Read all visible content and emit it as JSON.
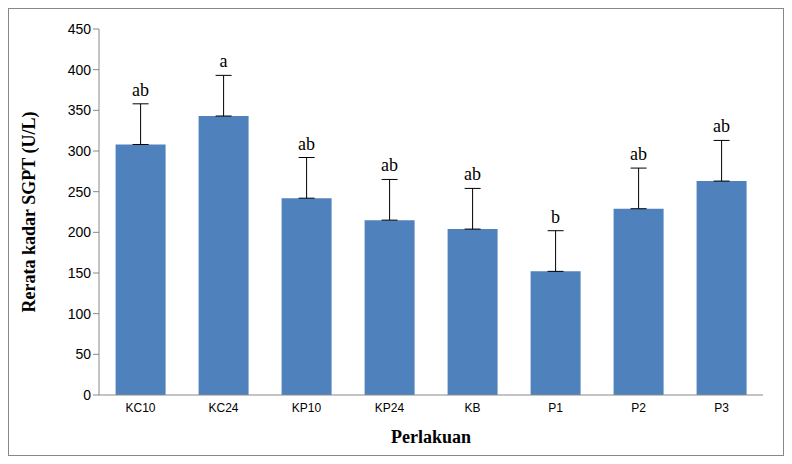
{
  "chart_data": {
    "type": "bar",
    "categories": [
      "KC10",
      "KC24",
      "KP10",
      "KP24",
      "KB",
      "P1",
      "P2",
      "P3"
    ],
    "values": [
      308,
      343,
      242,
      215,
      204,
      152,
      229,
      263
    ],
    "error": [
      50,
      50,
      50,
      50,
      50,
      50,
      50,
      50
    ],
    "letters": [
      "ab",
      "a",
      "ab",
      "ab",
      "ab",
      "b",
      "ab",
      "ab"
    ],
    "color": "#4f81bd",
    "x_label": "Perlakuan",
    "y_label": "Rerata kadar SGPT (U/L)",
    "ylim": [
      0,
      450
    ],
    "yticks": [
      0,
      50,
      100,
      150,
      200,
      250,
      300,
      350,
      400,
      450
    ],
    "grid": false
  }
}
